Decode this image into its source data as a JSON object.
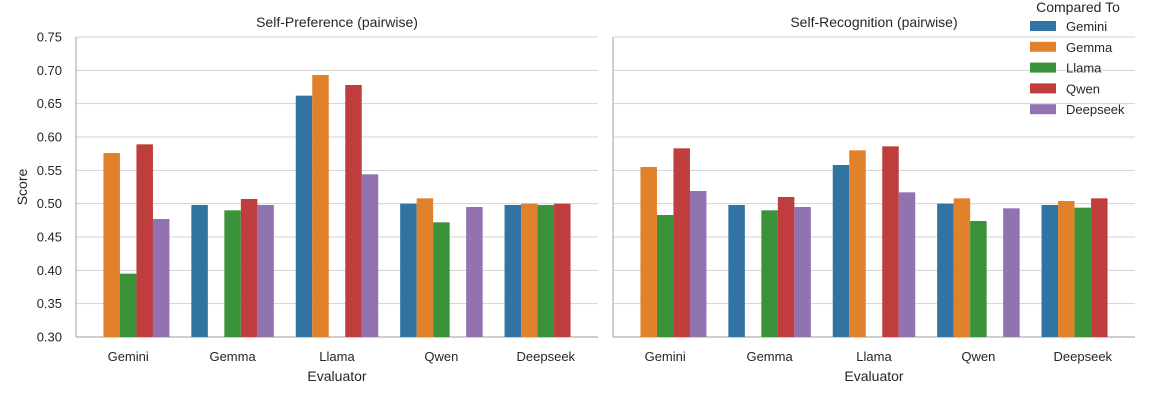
{
  "chart_data": [
    {
      "type": "bar",
      "title": "Self-Preference (pairwise)",
      "xlabel": "Evaluator",
      "ylabel": "Score",
      "ylim": [
        0.3,
        0.75
      ],
      "yticks": [
        "0.30",
        "0.35",
        "0.40",
        "0.45",
        "0.50",
        "0.55",
        "0.60",
        "0.65",
        "0.70",
        "0.75"
      ],
      "grid": true,
      "categories": [
        "Gemini",
        "Gemma",
        "Llama",
        "Qwen",
        "Deepseek"
      ],
      "series": [
        {
          "name": "Gemini",
          "values": [
            null,
            0.498,
            0.662,
            0.5,
            0.498
          ]
        },
        {
          "name": "Gemma",
          "values": [
            0.576,
            null,
            0.693,
            0.508,
            0.5
          ]
        },
        {
          "name": "Llama",
          "values": [
            0.395,
            0.49,
            null,
            0.472,
            0.498
          ]
        },
        {
          "name": "Qwen",
          "values": [
            0.589,
            0.507,
            0.678,
            null,
            0.5
          ]
        },
        {
          "name": "Deepseek",
          "values": [
            0.477,
            0.498,
            0.544,
            0.495,
            null
          ]
        }
      ]
    },
    {
      "type": "bar",
      "title": "Self-Recognition (pairwise)",
      "xlabel": "Evaluator",
      "ylabel": "",
      "ylim": [
        0.3,
        0.75
      ],
      "grid": true,
      "categories": [
        "Gemini",
        "Gemma",
        "Llama",
        "Qwen",
        "Deepseek"
      ],
      "series": [
        {
          "name": "Gemini",
          "values": [
            null,
            0.498,
            0.558,
            0.5,
            0.498
          ]
        },
        {
          "name": "Gemma",
          "values": [
            0.555,
            null,
            0.58,
            0.508,
            0.504
          ]
        },
        {
          "name": "Llama",
          "values": [
            0.483,
            0.49,
            null,
            0.474,
            0.494
          ]
        },
        {
          "name": "Qwen",
          "values": [
            0.583,
            0.51,
            0.586,
            null,
            0.508
          ]
        },
        {
          "name": "Deepseek",
          "values": [
            0.519,
            0.495,
            0.517,
            0.493,
            null
          ]
        }
      ]
    }
  ],
  "legend": {
    "title": "Compared To",
    "placement": "top-right",
    "entries": [
      "Gemini",
      "Gemma",
      "Llama",
      "Qwen",
      "Deepseek"
    ]
  },
  "colors": {
    "Gemini": "#3274a1",
    "Gemma": "#e1812c",
    "Llama": "#3a923a",
    "Qwen": "#c03d3e",
    "Deepseek": "#9372b2",
    "grid": "#d3d3d3",
    "axis": "#b0b0b0"
  }
}
